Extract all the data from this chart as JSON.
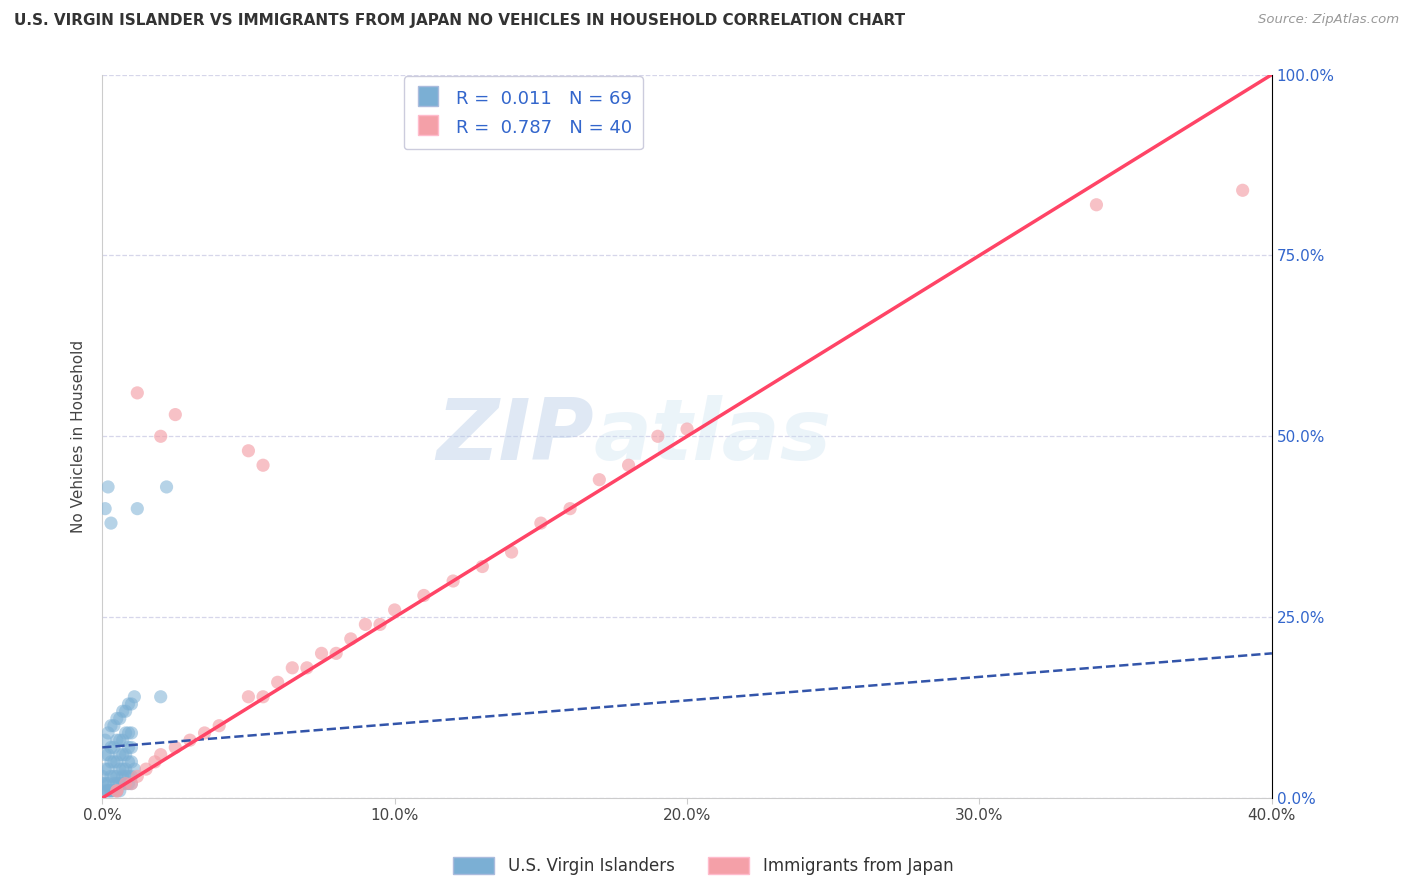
{
  "title": "U.S. VIRGIN ISLANDER VS IMMIGRANTS FROM JAPAN NO VEHICLES IN HOUSEHOLD CORRELATION CHART",
  "source": "Source: ZipAtlas.com",
  "ylabel": "No Vehicles in Household",
  "xlim": [
    0.0,
    0.4
  ],
  "ylim": [
    0.0,
    1.0
  ],
  "xticks": [
    0.0,
    0.1,
    0.2,
    0.3,
    0.4
  ],
  "yticks": [
    0.0,
    0.25,
    0.5,
    0.75,
    1.0
  ],
  "xticklabels": [
    "0.0%",
    "10.0%",
    "20.0%",
    "30.0%",
    "40.0%"
  ],
  "yticklabels": [
    "0.0%",
    "25.0%",
    "50.0%",
    "75.0%",
    "100.0%"
  ],
  "blue_color": "#7BAFD4",
  "pink_color": "#F4A0A8",
  "blue_line_color": "#3355AA",
  "pink_line_color": "#FF4466",
  "R_blue": 0.011,
  "N_blue": 69,
  "R_pink": 0.787,
  "N_pink": 40,
  "legend1_label": "U.S. Virgin Islanders",
  "legend2_label": "Immigrants from Japan",
  "watermark_zip": "ZIP",
  "watermark_atlas": "atlas",
  "blue_scatter_x": [
    0.001,
    0.002,
    0.003,
    0.004,
    0.005,
    0.006,
    0.007,
    0.008,
    0.009,
    0.01,
    0.002,
    0.003,
    0.004,
    0.005,
    0.006,
    0.007,
    0.008,
    0.009,
    0.01,
    0.011,
    0.001,
    0.002,
    0.003,
    0.004,
    0.005,
    0.006,
    0.007,
    0.008,
    0.009,
    0.01,
    0.001,
    0.002,
    0.003,
    0.004,
    0.005,
    0.006,
    0.007,
    0.008,
    0.009,
    0.01,
    0.001,
    0.002,
    0.003,
    0.004,
    0.005,
    0.006,
    0.007,
    0.008,
    0.009,
    0.01,
    0.001,
    0.002,
    0.003,
    0.004,
    0.005,
    0.006,
    0.007,
    0.008,
    0.009,
    0.01,
    0.001,
    0.002,
    0.003,
    0.011,
    0.012,
    0.02,
    0.022,
    0.0,
    0.0
  ],
  "blue_scatter_y": [
    0.01,
    0.01,
    0.01,
    0.01,
    0.01,
    0.01,
    0.02,
    0.02,
    0.02,
    0.02,
    0.01,
    0.01,
    0.02,
    0.02,
    0.02,
    0.03,
    0.03,
    0.03,
    0.03,
    0.04,
    0.02,
    0.02,
    0.03,
    0.03,
    0.03,
    0.04,
    0.04,
    0.04,
    0.05,
    0.05,
    0.04,
    0.04,
    0.05,
    0.05,
    0.05,
    0.06,
    0.06,
    0.06,
    0.07,
    0.07,
    0.06,
    0.06,
    0.07,
    0.07,
    0.08,
    0.08,
    0.08,
    0.09,
    0.09,
    0.09,
    0.08,
    0.09,
    0.1,
    0.1,
    0.11,
    0.11,
    0.12,
    0.12,
    0.13,
    0.13,
    0.4,
    0.43,
    0.38,
    0.14,
    0.4,
    0.14,
    0.43,
    0.02,
    0.03
  ],
  "pink_scatter_x": [
    0.005,
    0.008,
    0.01,
    0.012,
    0.015,
    0.018,
    0.02,
    0.025,
    0.03,
    0.035,
    0.04,
    0.05,
    0.055,
    0.06,
    0.065,
    0.07,
    0.075,
    0.08,
    0.085,
    0.09,
    0.095,
    0.1,
    0.11,
    0.12,
    0.13,
    0.14,
    0.15,
    0.16,
    0.17,
    0.18,
    0.012,
    0.02,
    0.025,
    0.05,
    0.055,
    0.19,
    0.2,
    0.34,
    0.39,
    0.005
  ],
  "pink_scatter_y": [
    0.01,
    0.02,
    0.02,
    0.03,
    0.04,
    0.05,
    0.06,
    0.07,
    0.08,
    0.09,
    0.1,
    0.14,
    0.14,
    0.16,
    0.18,
    0.18,
    0.2,
    0.2,
    0.22,
    0.24,
    0.24,
    0.26,
    0.28,
    0.3,
    0.32,
    0.34,
    0.38,
    0.4,
    0.44,
    0.46,
    0.56,
    0.5,
    0.53,
    0.48,
    0.46,
    0.5,
    0.51,
    0.82,
    0.84,
    0.01
  ],
  "blue_line_x": [
    0.0,
    0.4
  ],
  "blue_line_y": [
    0.07,
    0.2
  ],
  "pink_line_x": [
    0.0,
    0.4
  ],
  "pink_line_y": [
    0.0,
    1.0
  ]
}
